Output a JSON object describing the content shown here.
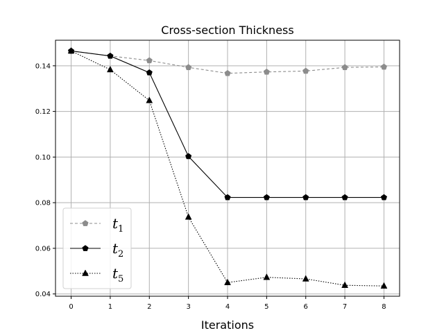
{
  "chart_data": {
    "type": "line",
    "title": "Cross-section Thickness",
    "xlabel": "Iterations",
    "ylabel": "",
    "x": [
      0,
      1,
      2,
      3,
      4,
      5,
      6,
      7,
      8
    ],
    "xlim": [
      -0.4,
      8.4
    ],
    "ylim": [
      0.039,
      0.1512
    ],
    "xticks": [
      "0",
      "1",
      "2",
      "3",
      "4",
      "5",
      "6",
      "7",
      "8"
    ],
    "yticks": [
      "0.04",
      "0.06",
      "0.08",
      "0.10",
      "0.12",
      "0.14"
    ],
    "ytick_values": [
      0.04,
      0.06,
      0.08,
      0.1,
      0.12,
      0.14
    ],
    "grid": true,
    "legend_position": "lower-left",
    "series": [
      {
        "name": "t",
        "subscript": "1",
        "values": [
          0.1465,
          0.1443,
          0.1423,
          0.1393,
          0.1367,
          0.1373,
          0.1377,
          0.1393,
          0.1395
        ],
        "color": "#8c8c8c",
        "dash": "4,3",
        "marker": "pentagon"
      },
      {
        "name": "t",
        "subscript": "2",
        "values": [
          0.1465,
          0.1443,
          0.137,
          0.1003,
          0.0823,
          0.0823,
          0.0823,
          0.0823,
          0.0823
        ],
        "color": "#000000",
        "dash": "",
        "marker": "pentagon"
      },
      {
        "name": "t",
        "subscript": "5",
        "values": [
          0.1465,
          0.1383,
          0.1248,
          0.0737,
          0.045,
          0.0473,
          0.0466,
          0.0438,
          0.0435
        ],
        "color": "#000000",
        "dash": "1.5,2",
        "marker": "triangle"
      }
    ]
  }
}
